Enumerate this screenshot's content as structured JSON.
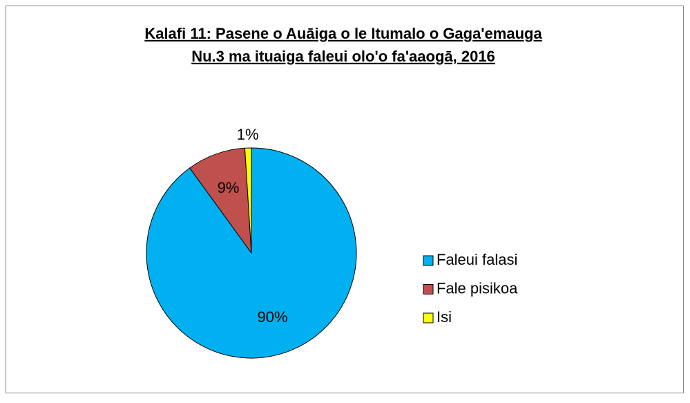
{
  "chart_data": {
    "type": "pie",
    "title": [
      "Kalafi 11: Pasene o Auāiga o le Itumalo o Gaga'emauga",
      "Nu.3 ma ituaiga faleui olo'o  fa'aaogā, 2016"
    ],
    "categories": [
      "Faleui falasi",
      "Fale pisikoa",
      "Isi"
    ],
    "values": [
      90,
      9,
      1
    ],
    "value_labels": [
      "90%",
      "9%",
      "1%"
    ],
    "colors": [
      "#00b0f0",
      "#c0504d",
      "#ffff00"
    ],
    "legend": "right"
  }
}
